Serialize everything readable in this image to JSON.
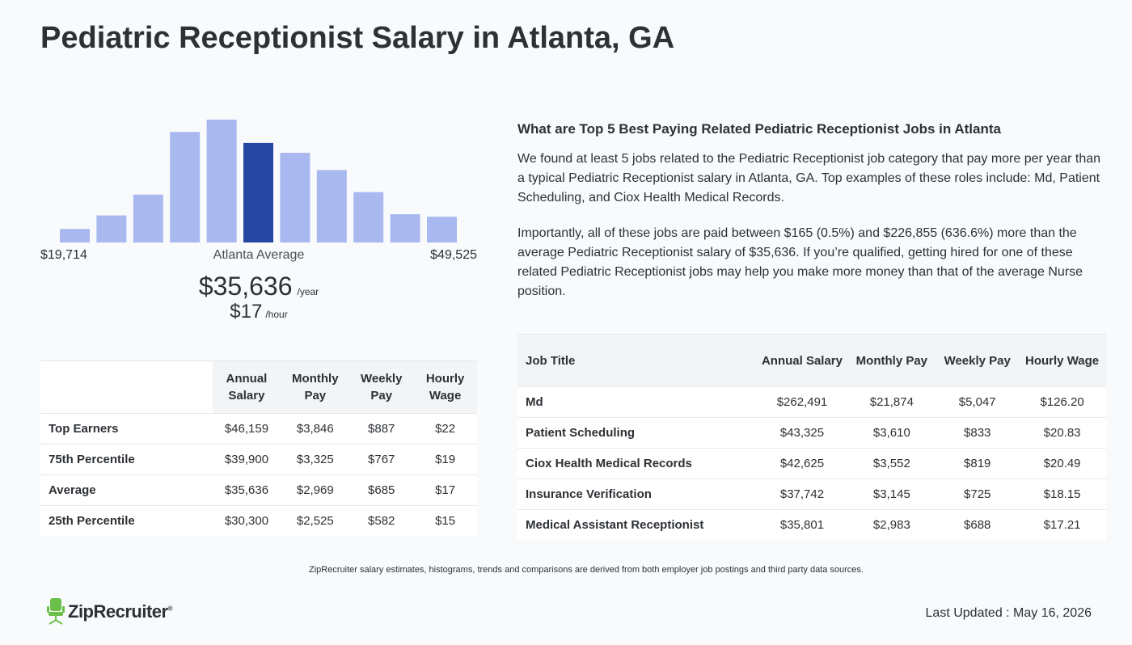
{
  "title": "Pediatric Receptionist Salary in Atlanta, GA",
  "histogram": {
    "bars": [
      0.11,
      0.22,
      0.39,
      0.9,
      1.0,
      0.81,
      0.73,
      0.59,
      0.41,
      0.23,
      0.21
    ],
    "highlight_index": 5,
    "min_label": "$19,714",
    "max_label": "$49,525",
    "avg_label": "Atlanta Average",
    "bar_color": "#aab8f0",
    "highlight_color": "#2547a3"
  },
  "salary": {
    "yearly": "$35,636",
    "yearly_unit": "/year",
    "hourly": "$17",
    "hourly_unit": "/hour"
  },
  "percentile_table": {
    "headers": [
      "Annual Salary",
      "Monthly Pay",
      "Weekly Pay",
      "Hourly Wage"
    ],
    "rows": [
      {
        "label": "Top Earners",
        "values": [
          "$46,159",
          "$3,846",
          "$887",
          "$22"
        ]
      },
      {
        "label": "75th Percentile",
        "values": [
          "$39,900",
          "$3,325",
          "$767",
          "$19"
        ]
      },
      {
        "label": "Average",
        "values": [
          "$35,636",
          "$2,969",
          "$685",
          "$17"
        ]
      },
      {
        "label": "25th Percentile",
        "values": [
          "$30,300",
          "$2,525",
          "$582",
          "$15"
        ]
      }
    ]
  },
  "related": {
    "heading": "What are Top 5 Best Paying Related Pediatric Receptionist Jobs in Atlanta",
    "p1": "We found at least 5 jobs related to the Pediatric Receptionist job category that pay more per year than a typical Pediatric Receptionist salary in Atlanta, GA. Top examples of these roles include: Md, Patient Scheduling, and Ciox Health Medical Records.",
    "p2": "Importantly, all of these jobs are paid between $165 (0.5%) and $226,855 (636.6%) more than the average Pediatric Receptionist salary of $35,636. If you’re qualified, getting hired for one of these related Pediatric Receptionist jobs may help you make more money than that of the average Nurse position."
  },
  "jobs_table": {
    "headers": [
      "Job Title",
      "Annual Salary",
      "Monthly Pay",
      "Weekly Pay",
      "Hourly Wage"
    ],
    "rows": [
      {
        "label": "Md",
        "values": [
          "$262,491",
          "$21,874",
          "$5,047",
          "$126.20"
        ]
      },
      {
        "label": "Patient Scheduling",
        "values": [
          "$43,325",
          "$3,610",
          "$833",
          "$20.83"
        ]
      },
      {
        "label": "Ciox Health Medical Records",
        "values": [
          "$42,625",
          "$3,552",
          "$819",
          "$20.49"
        ]
      },
      {
        "label": "Insurance Verification",
        "values": [
          "$37,742",
          "$3,145",
          "$725",
          "$18.15"
        ]
      },
      {
        "label": "Medical Assistant Receptionist",
        "values": [
          "$35,801",
          "$2,983",
          "$688",
          "$17.21"
        ]
      }
    ]
  },
  "disclaimer": "ZipRecruiter salary estimates, histograms, trends and comparisons are derived from both employer job postings and third party data sources.",
  "logo": {
    "text": "ZipRecruiter",
    "reg": "®",
    "icon": "chair-icon",
    "color": "#6cc04a"
  },
  "last_updated": "Last Updated : May 16, 2026"
}
